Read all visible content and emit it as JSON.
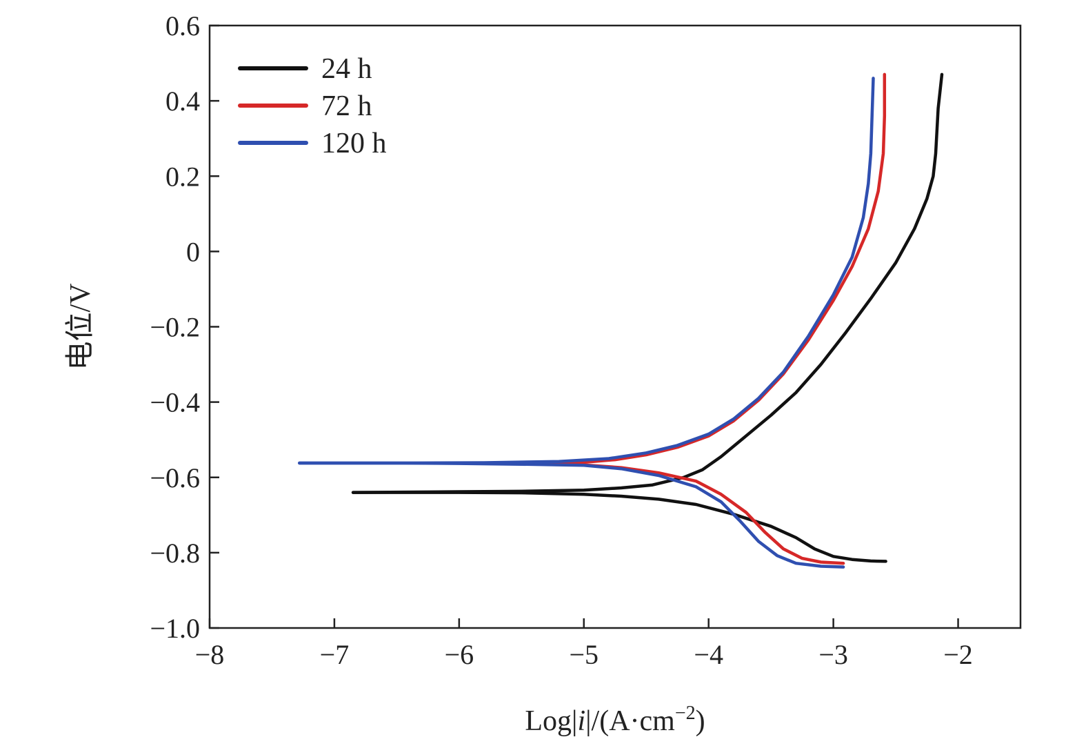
{
  "chart_data": {
    "type": "line",
    "xlabel": "Log|i|/(A·cm−2)",
    "xlabel_parts": {
      "prefix": "Log|",
      "italic": "i",
      "middle": "|/(A·cm",
      "sup": "−2",
      "suffix": ")"
    },
    "ylabel": "电位/V",
    "xlim": [
      -8,
      -1.5
    ],
    "ylim": [
      -1.0,
      0.6
    ],
    "x_ticks": [
      -8,
      -7,
      -6,
      -5,
      -4,
      -3,
      -2
    ],
    "x_tick_labels": [
      "−8",
      "−7",
      "−6",
      "−5",
      "−4",
      "−3",
      "−2"
    ],
    "y_ticks": [
      0.6,
      0.4,
      0.2,
      0,
      -0.2,
      -0.4,
      -0.6,
      -0.8,
      -1.0
    ],
    "y_tick_labels": [
      "0.6",
      "0.4",
      "0.2",
      "0",
      "−0.2",
      "−0.4",
      "−0.6",
      "−0.8",
      "−1.0"
    ],
    "grid": false,
    "legend_position": "top-left",
    "series": [
      {
        "name": "24 h",
        "color": "#111111",
        "anodic": [
          [
            -6.85,
            -0.64
          ],
          [
            -6.0,
            -0.638
          ],
          [
            -5.5,
            -0.637
          ],
          [
            -5.0,
            -0.634
          ],
          [
            -4.7,
            -0.628
          ],
          [
            -4.45,
            -0.62
          ],
          [
            -4.2,
            -0.6
          ],
          [
            -4.05,
            -0.58
          ],
          [
            -3.9,
            -0.545
          ],
          [
            -3.7,
            -0.49
          ],
          [
            -3.5,
            -0.435
          ],
          [
            -3.3,
            -0.375
          ],
          [
            -3.1,
            -0.3
          ],
          [
            -2.9,
            -0.215
          ],
          [
            -2.7,
            -0.125
          ],
          [
            -2.5,
            -0.03
          ],
          [
            -2.35,
            0.06
          ],
          [
            -2.25,
            0.14
          ],
          [
            -2.2,
            0.2
          ],
          [
            -2.18,
            0.26
          ],
          [
            -2.16,
            0.38
          ],
          [
            -2.13,
            0.47
          ]
        ],
        "cathodic": [
          [
            -6.85,
            -0.64
          ],
          [
            -6.0,
            -0.64
          ],
          [
            -5.5,
            -0.641
          ],
          [
            -5.0,
            -0.645
          ],
          [
            -4.7,
            -0.65
          ],
          [
            -4.4,
            -0.658
          ],
          [
            -4.1,
            -0.672
          ],
          [
            -3.8,
            -0.698
          ],
          [
            -3.5,
            -0.73
          ],
          [
            -3.3,
            -0.76
          ],
          [
            -3.15,
            -0.79
          ],
          [
            -3.0,
            -0.81
          ],
          [
            -2.85,
            -0.818
          ],
          [
            -2.7,
            -0.822
          ],
          [
            -2.58,
            -0.823
          ]
        ]
      },
      {
        "name": "72 h",
        "color": "#d62828",
        "anodic": [
          [
            -5.8,
            -0.562
          ],
          [
            -5.4,
            -0.562
          ],
          [
            -5.0,
            -0.56
          ],
          [
            -4.75,
            -0.553
          ],
          [
            -4.5,
            -0.54
          ],
          [
            -4.25,
            -0.52
          ],
          [
            -4.0,
            -0.49
          ],
          [
            -3.8,
            -0.45
          ],
          [
            -3.6,
            -0.395
          ],
          [
            -3.4,
            -0.325
          ],
          [
            -3.2,
            -0.235
          ],
          [
            -3.0,
            -0.13
          ],
          [
            -2.85,
            -0.04
          ],
          [
            -2.72,
            0.06
          ],
          [
            -2.64,
            0.16
          ],
          [
            -2.6,
            0.26
          ],
          [
            -2.59,
            0.36
          ],
          [
            -2.59,
            0.47
          ]
        ],
        "cathodic": [
          [
            -5.8,
            -0.562
          ],
          [
            -5.3,
            -0.563
          ],
          [
            -5.0,
            -0.567
          ],
          [
            -4.7,
            -0.574
          ],
          [
            -4.4,
            -0.588
          ],
          [
            -4.1,
            -0.61
          ],
          [
            -3.9,
            -0.645
          ],
          [
            -3.7,
            -0.693
          ],
          [
            -3.55,
            -0.745
          ],
          [
            -3.4,
            -0.79
          ],
          [
            -3.25,
            -0.815
          ],
          [
            -3.1,
            -0.825
          ],
          [
            -2.92,
            -0.828
          ]
        ]
      },
      {
        "name": "120 h",
        "color": "#2f4fb0",
        "anodic": [
          [
            -7.28,
            -0.562
          ],
          [
            -6.5,
            -0.562
          ],
          [
            -5.8,
            -0.561
          ],
          [
            -5.2,
            -0.558
          ],
          [
            -4.8,
            -0.55
          ],
          [
            -4.5,
            -0.535
          ],
          [
            -4.25,
            -0.515
          ],
          [
            -4.0,
            -0.485
          ],
          [
            -3.8,
            -0.445
          ],
          [
            -3.6,
            -0.39
          ],
          [
            -3.4,
            -0.32
          ],
          [
            -3.2,
            -0.225
          ],
          [
            -3.0,
            -0.115
          ],
          [
            -2.85,
            -0.015
          ],
          [
            -2.76,
            0.09
          ],
          [
            -2.72,
            0.18
          ],
          [
            -2.7,
            0.26
          ],
          [
            -2.69,
            0.36
          ],
          [
            -2.68,
            0.46
          ]
        ],
        "cathodic": [
          [
            -7.28,
            -0.562
          ],
          [
            -6.5,
            -0.562
          ],
          [
            -6.0,
            -0.563
          ],
          [
            -5.5,
            -0.565
          ],
          [
            -5.0,
            -0.568
          ],
          [
            -4.7,
            -0.577
          ],
          [
            -4.4,
            -0.595
          ],
          [
            -4.1,
            -0.625
          ],
          [
            -3.9,
            -0.665
          ],
          [
            -3.75,
            -0.715
          ],
          [
            -3.6,
            -0.77
          ],
          [
            -3.45,
            -0.808
          ],
          [
            -3.3,
            -0.828
          ],
          [
            -3.1,
            -0.836
          ],
          [
            -2.92,
            -0.838
          ]
        ]
      }
    ]
  }
}
